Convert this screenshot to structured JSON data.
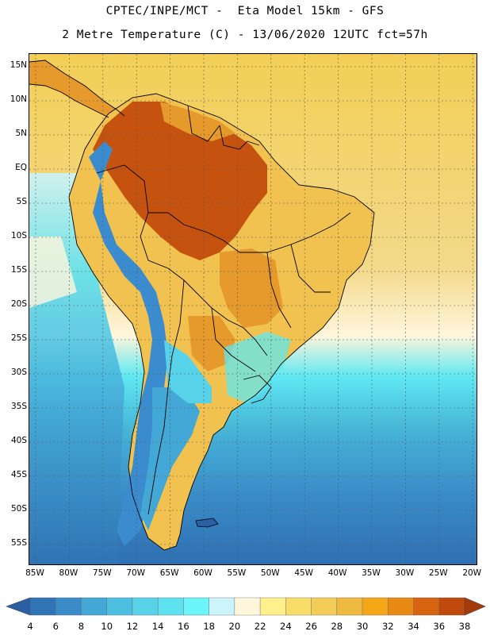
{
  "header": {
    "line1": "CPTEC/INPE/MCT -  Eta Model 15km - GFS",
    "line2": "2 Metre Temperature (C) - 13/06/2020 12UTC fct=57h"
  },
  "map": {
    "lat_labels": [
      "15N",
      "10N",
      "5N",
      "EQ",
      "5S",
      "10S",
      "15S",
      "20S",
      "25S",
      "30S",
      "35S",
      "40S",
      "45S",
      "50S",
      "55S"
    ],
    "lon_labels": [
      "85W",
      "80W",
      "75W",
      "70W",
      "65W",
      "60W",
      "55W",
      "50W",
      "45W",
      "40W",
      "35W",
      "30W",
      "25W",
      "20W"
    ],
    "colors": {
      "ocean_cold": "#2f6fb2",
      "ocean_mid": "#45b2d6",
      "ocean_cyan": "#5fe8f2",
      "ocean_warm": "#f3d98a",
      "land_hot": "#c65210",
      "land_warm": "#e69a2c",
      "land_mild": "#f1c24f",
      "andes_cold": "#3a8ccf",
      "border": "#000000"
    }
  },
  "colorbar": {
    "labels": [
      "4",
      "6",
      "8",
      "10",
      "12",
      "14",
      "16",
      "18",
      "20",
      "22",
      "24",
      "26",
      "28",
      "30",
      "32",
      "34",
      "36",
      "38"
    ],
    "colors": [
      "#2a5fa5",
      "#2f74b5",
      "#3a8cc8",
      "#44a8d6",
      "#4cbfe0",
      "#57d2e8",
      "#5fe2f0",
      "#6cf5fb",
      "#ccf4fb",
      "#fff6dc",
      "#fff08c",
      "#f8dd6a",
      "#f3cc55",
      "#eeba3f",
      "#f5a718",
      "#e98a14",
      "#d96410",
      "#c04a0c",
      "#a43a0a"
    ]
  }
}
